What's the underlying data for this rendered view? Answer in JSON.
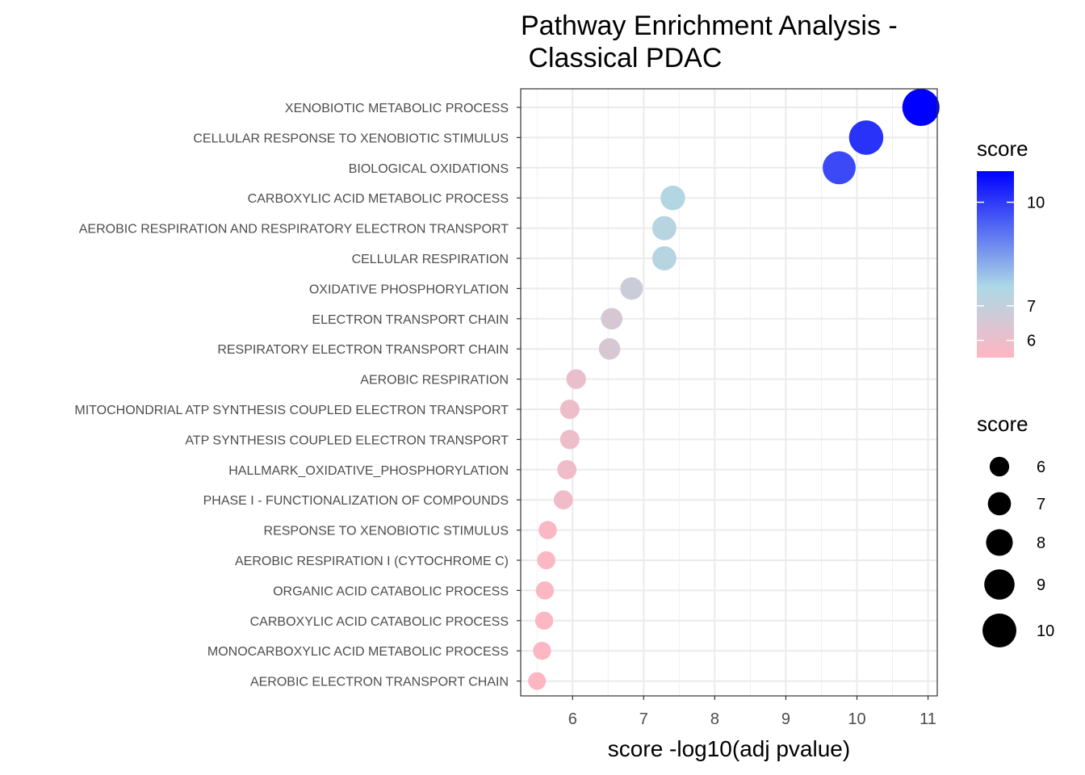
{
  "chart_data": {
    "type": "scatter",
    "title_lines": [
      "Pathway Enrichment Analysis -",
      " Classical PDAC"
    ],
    "xlabel": "score -log10(adj pvalue)",
    "ylabel": "",
    "xlim": [
      5.27,
      11.13
    ],
    "xticks": [
      6,
      7,
      8,
      9,
      10,
      11
    ],
    "grid": true,
    "categories": [
      "XENOBIOTIC METABOLIC PROCESS",
      "CELLULAR RESPONSE TO XENOBIOTIC STIMULUS",
      "BIOLOGICAL OXIDATIONS",
      "CARBOXYLIC ACID METABOLIC PROCESS",
      "AEROBIC RESPIRATION AND RESPIRATORY ELECTRON TRANSPORT",
      "CELLULAR RESPIRATION",
      "OXIDATIVE PHOSPHORYLATION",
      "ELECTRON TRANSPORT CHAIN",
      "RESPIRATORY ELECTRON TRANSPORT CHAIN",
      "AEROBIC RESPIRATION",
      "MITOCHONDRIAL ATP SYNTHESIS COUPLED ELECTRON TRANSPORT",
      "ATP SYNTHESIS COUPLED ELECTRON TRANSPORT",
      "HALLMARK_OXIDATIVE_PHOSPHORYLATION",
      "PHASE I - FUNCTIONALIZATION OF COMPOUNDS",
      "RESPONSE TO XENOBIOTIC STIMULUS",
      "AEROBIC RESPIRATION I (CYTOCHROME C)",
      "ORGANIC ACID CATABOLIC PROCESS",
      "CARBOXYLIC ACID CATABOLIC PROCESS",
      "MONOCARBOXYLIC ACID METABOLIC PROCESS",
      "AEROBIC ELECTRON TRANSPORT CHAIN"
    ],
    "values": [
      10.9,
      10.13,
      9.75,
      7.41,
      7.29,
      7.29,
      6.83,
      6.55,
      6.52,
      6.05,
      5.96,
      5.96,
      5.92,
      5.87,
      5.65,
      5.63,
      5.61,
      5.6,
      5.57,
      5.5
    ],
    "color_scale": {
      "low": "#FFB6C1",
      "mid": "#ADD8E6",
      "high": "#0000FF",
      "domain": [
        5.5,
        7.55,
        10.9
      ]
    },
    "size_range": [
      5.5,
      10.9
    ],
    "legend_placement": "right",
    "legends": {
      "color": {
        "title": "score",
        "labels": [
          "10",
          "7",
          "6"
        ],
        "breaks": [
          10,
          7,
          6
        ]
      },
      "size": {
        "title": "score",
        "labels": [
          "6",
          "7",
          "8",
          "9",
          "10"
        ],
        "breaks": [
          6,
          7,
          8,
          9,
          10
        ]
      }
    }
  }
}
